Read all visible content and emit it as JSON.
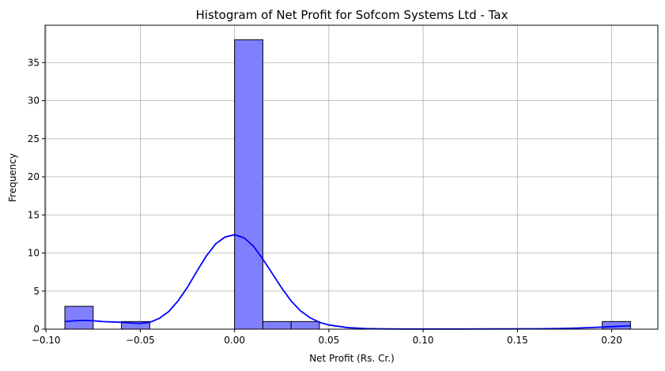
{
  "chart_data": {
    "type": "bar",
    "title": "Histogram of Net Profit for Sofcom Systems Ltd - Tax",
    "xlabel": "Net Profit (Rs. Cr.)",
    "ylabel": "Frequency",
    "xlim": [
      -0.1005,
      0.2245
    ],
    "ylim": [
      0,
      39.9
    ],
    "grid": true,
    "xticks": [
      -0.1,
      -0.05,
      0.0,
      0.05,
      0.1,
      0.15,
      0.2
    ],
    "xtick_labels": [
      "−0.10",
      "−0.05",
      "0.00",
      "0.05",
      "0.10",
      "0.15",
      "0.20"
    ],
    "yticks": [
      0,
      5,
      10,
      15,
      20,
      25,
      30,
      35
    ],
    "ytick_labels": [
      "0",
      "5",
      "10",
      "15",
      "20",
      "25",
      "30",
      "35"
    ],
    "bar_color": "#8080ff",
    "kde_color": "#0000ff",
    "bins": [
      {
        "x0": -0.09,
        "x1": -0.075,
        "count": 3
      },
      {
        "x0": -0.075,
        "x1": -0.06,
        "count": 0
      },
      {
        "x0": -0.06,
        "x1": -0.045,
        "count": 1
      },
      {
        "x0": -0.045,
        "x1": -0.03,
        "count": 0
      },
      {
        "x0": -0.03,
        "x1": -0.015,
        "count": 0
      },
      {
        "x0": -0.015,
        "x1": 0.0,
        "count": 0
      },
      {
        "x0": 0.0,
        "x1": 0.015,
        "count": 38
      },
      {
        "x0": 0.015,
        "x1": 0.03,
        "count": 1
      },
      {
        "x0": 0.03,
        "x1": 0.045,
        "count": 1
      },
      {
        "x0": 0.045,
        "x1": 0.06,
        "count": 0
      },
      {
        "x0": 0.06,
        "x1": 0.075,
        "count": 0
      },
      {
        "x0": 0.075,
        "x1": 0.09,
        "count": 0
      },
      {
        "x0": 0.09,
        "x1": 0.105,
        "count": 0
      },
      {
        "x0": 0.105,
        "x1": 0.12,
        "count": 0
      },
      {
        "x0": 0.12,
        "x1": 0.135,
        "count": 0
      },
      {
        "x0": 0.135,
        "x1": 0.15,
        "count": 0
      },
      {
        "x0": 0.15,
        "x1": 0.165,
        "count": 0
      },
      {
        "x0": 0.165,
        "x1": 0.18,
        "count": 0
      },
      {
        "x0": 0.18,
        "x1": 0.195,
        "count": 0
      },
      {
        "x0": 0.195,
        "x1": 0.21,
        "count": 1
      }
    ],
    "kde": {
      "x": [
        -0.09,
        -0.085,
        -0.08,
        -0.075,
        -0.07,
        -0.065,
        -0.06,
        -0.055,
        -0.05,
        -0.045,
        -0.04,
        -0.035,
        -0.03,
        -0.025,
        -0.02,
        -0.015,
        -0.01,
        -0.005,
        0.0,
        0.005,
        0.01,
        0.015,
        0.02,
        0.025,
        0.03,
        0.035,
        0.04,
        0.045,
        0.05,
        0.06,
        0.07,
        0.08,
        0.09,
        0.1,
        0.12,
        0.14,
        0.16,
        0.17,
        0.18,
        0.19,
        0.2,
        0.21
      ],
      "y": [
        1.0,
        1.1,
        1.15,
        1.1,
        1.0,
        0.95,
        0.9,
        0.8,
        0.75,
        0.9,
        1.4,
        2.3,
        3.7,
        5.5,
        7.6,
        9.6,
        11.2,
        12.1,
        12.4,
        12.0,
        10.9,
        9.2,
        7.3,
        5.4,
        3.7,
        2.4,
        1.5,
        0.9,
        0.55,
        0.2,
        0.08,
        0.03,
        0.02,
        0.02,
        0.02,
        0.03,
        0.05,
        0.08,
        0.13,
        0.22,
        0.33,
        0.45
      ]
    }
  }
}
